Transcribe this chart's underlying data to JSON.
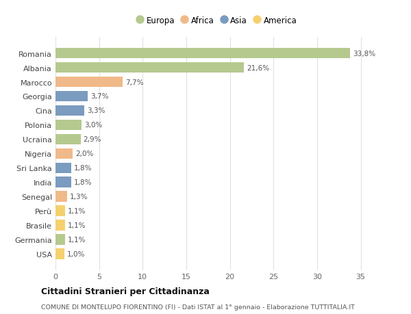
{
  "categories": [
    "Romania",
    "Albania",
    "Marocco",
    "Georgia",
    "Cina",
    "Polonia",
    "Ucraina",
    "Nigeria",
    "Sri Lanka",
    "India",
    "Senegal",
    "Perù",
    "Brasile",
    "Germania",
    "USA"
  ],
  "values": [
    33.8,
    21.6,
    7.7,
    3.7,
    3.3,
    3.0,
    2.9,
    2.0,
    1.8,
    1.8,
    1.3,
    1.1,
    1.1,
    1.1,
    1.0
  ],
  "labels": [
    "33,8%",
    "21,6%",
    "7,7%",
    "3,7%",
    "3,3%",
    "3,0%",
    "2,9%",
    "2,0%",
    "1,8%",
    "1,8%",
    "1,3%",
    "1,1%",
    "1,1%",
    "1,1%",
    "1,0%"
  ],
  "colors": [
    "#b5c98e",
    "#b5c98e",
    "#f0b989",
    "#7b9bbf",
    "#7b9bbf",
    "#b5c98e",
    "#b5c98e",
    "#f0b989",
    "#7b9bbf",
    "#7b9bbf",
    "#f0b989",
    "#f5d06e",
    "#f5d06e",
    "#b5c98e",
    "#f5d06e"
  ],
  "legend_labels": [
    "Europa",
    "Africa",
    "Asia",
    "America"
  ],
  "legend_colors": [
    "#b5c98e",
    "#f0b989",
    "#7b9bbf",
    "#f5d06e"
  ],
  "title": "Cittadini Stranieri per Cittadinanza",
  "subtitle": "COMUNE DI MONTELUPO FIORENTINO (FI) - Dati ISTAT al 1° gennaio - Elaborazione TUTTITALIA.IT",
  "xlim": [
    0,
    37
  ],
  "xticks": [
    0,
    5,
    10,
    15,
    20,
    25,
    30,
    35
  ],
  "bg_color": "#ffffff",
  "grid_color": "#e0e0e0",
  "bar_height": 0.75
}
